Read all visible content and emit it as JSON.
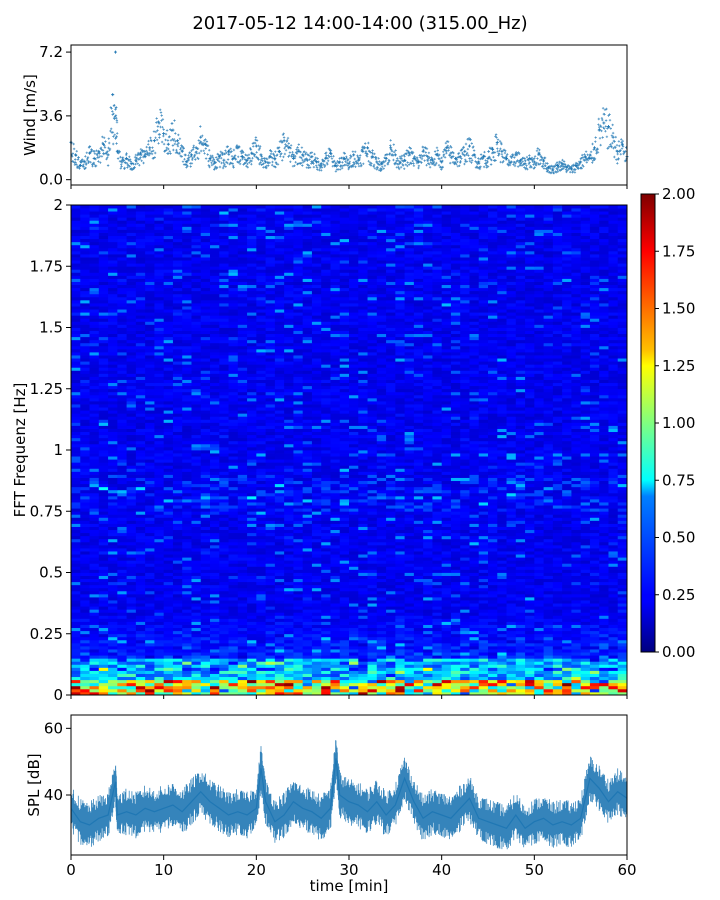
{
  "figure": {
    "title": "2017-05-12 14:00-14:00 (315.00_Hz)"
  },
  "chart_data": [
    {
      "type": "scatter",
      "panel": "wind",
      "ylabel": "Wind [m/s]",
      "xlabel": "",
      "xlim": [
        0,
        60
      ],
      "ylim": [
        -0.3,
        7.6
      ],
      "yticks": [
        0.0,
        3.6,
        7.2
      ],
      "ytick_labels": [
        "0.0",
        "3.6",
        "7.2"
      ],
      "marker": "+",
      "color": "#1f77b4",
      "grid": false,
      "x": [
        0.0,
        0.5,
        1.0,
        1.5,
        2.0,
        2.5,
        3.0,
        3.5,
        4.0,
        4.5,
        4.8,
        5.0,
        5.5,
        6.0,
        6.5,
        7.0,
        7.5,
        8.0,
        8.5,
        9.0,
        9.5,
        10.0,
        10.5,
        11.0,
        11.5,
        12.0,
        12.5,
        13.0,
        13.5,
        14.0,
        14.5,
        15.0,
        15.5,
        16.0,
        16.5,
        17.0,
        17.5,
        18.0,
        18.5,
        19.0,
        19.5,
        20.0,
        20.5,
        21.0,
        21.5,
        22.0,
        22.5,
        23.0,
        23.5,
        24.0,
        24.5,
        25.0,
        25.5,
        26.0,
        26.5,
        27.0,
        27.5,
        28.0,
        28.5,
        29.0,
        29.5,
        30.0,
        30.5,
        31.0,
        31.5,
        32.0,
        32.5,
        33.0,
        33.5,
        34.0,
        34.5,
        35.0,
        35.5,
        36.0,
        36.5,
        37.0,
        37.5,
        38.0,
        38.5,
        39.0,
        39.5,
        40.0,
        40.5,
        41.0,
        41.5,
        42.0,
        42.5,
        43.0,
        43.5,
        44.0,
        44.5,
        45.0,
        45.5,
        46.0,
        46.5,
        47.0,
        47.5,
        48.0,
        48.5,
        49.0,
        49.5,
        50.0,
        50.5,
        51.0,
        51.5,
        52.0,
        52.5,
        53.0,
        53.5,
        54.0,
        54.5,
        55.0,
        55.5,
        56.0,
        56.5,
        57.0,
        57.5,
        58.0,
        58.5,
        59.0,
        59.5,
        60.0
      ],
      "y": [
        2.1,
        1.4,
        0.8,
        1.0,
        1.5,
        1.2,
        1.6,
        2.0,
        1.4,
        4.8,
        7.2,
        1.6,
        1.0,
        1.2,
        0.9,
        1.1,
        1.5,
        1.3,
        1.8,
        2.2,
        3.2,
        2.6,
        2.0,
        2.8,
        2.2,
        1.6,
        1.0,
        1.4,
        1.8,
        2.4,
        2.0,
        1.2,
        1.0,
        1.3,
        1.1,
        1.6,
        1.2,
        1.8,
        1.3,
        1.1,
        1.5,
        1.9,
        1.4,
        1.0,
        1.3,
        1.2,
        1.6,
        2.2,
        1.8,
        1.2,
        1.6,
        1.4,
        1.1,
        1.3,
        1.0,
        0.9,
        1.2,
        1.5,
        0.8,
        1.0,
        1.2,
        0.9,
        1.4,
        1.1,
        1.6,
        1.8,
        1.3,
        1.0,
        0.9,
        1.2,
        1.8,
        1.4,
        1.0,
        1.1,
        1.5,
        1.2,
        1.0,
        1.6,
        1.3,
        1.1,
        1.4,
        1.0,
        1.8,
        1.5,
        1.2,
        1.3,
        1.6,
        1.9,
        1.4,
        1.0,
        1.3,
        1.2,
        1.7,
        2.1,
        1.6,
        1.2,
        1.0,
        1.4,
        1.1,
        0.9,
        1.2,
        1.0,
        1.5,
        1.1,
        0.7,
        0.6,
        0.8,
        0.9,
        0.7,
        0.6,
        0.8,
        1.0,
        1.3,
        1.2,
        1.8,
        2.8,
        3.2,
        3.0,
        2.4,
        1.6,
        2.0,
        1.3
      ]
    },
    {
      "type": "heatmap",
      "panel": "spectrogram",
      "ylabel": "FFT Frequenz [Hz]",
      "xlabel": "",
      "xlim": [
        0,
        60
      ],
      "ylim": [
        0,
        2
      ],
      "yticks": [
        0,
        0.25,
        0.5,
        0.75,
        1,
        1.25,
        1.5,
        1.75,
        2
      ],
      "ytick_labels": [
        "0",
        "0.25",
        "0.5",
        "0.75",
        "1",
        "1.25",
        "1.5",
        "1.75",
        "2"
      ],
      "colormap": "jet",
      "color_range": [
        0.0,
        2.0
      ],
      "colorbar_ticks": [
        0.0,
        0.25,
        0.5,
        0.75,
        1.0,
        1.25,
        1.5,
        1.75,
        2.0
      ],
      "colorbar_tick_labels": [
        "0.00",
        "0.25",
        "0.50",
        "0.75",
        "1.00",
        "1.25",
        "1.50",
        "1.75",
        "2.00"
      ],
      "grid": false
    },
    {
      "type": "line",
      "panel": "spl",
      "ylabel": "SPL [dB]",
      "xlabel": "time [min]",
      "xlim": [
        0,
        60
      ],
      "ylim": [
        22,
        64
      ],
      "yticks": [
        40,
        60
      ],
      "ytick_labels": [
        "40",
        "60"
      ],
      "xticks": [
        0,
        10,
        20,
        30,
        40,
        50,
        60
      ],
      "xtick_labels": [
        "0",
        "10",
        "20",
        "30",
        "40",
        "50",
        "60"
      ],
      "color": "#1f77b4",
      "grid": false,
      "x": [
        0,
        1,
        2,
        3,
        4,
        4.8,
        5,
        6,
        7,
        8,
        9,
        10,
        11,
        12,
        13,
        14,
        15,
        16,
        17,
        18,
        19,
        20,
        20.5,
        21,
        22,
        23,
        24,
        25,
        26,
        27,
        28,
        28.6,
        29,
        30,
        31,
        32,
        33,
        34,
        35,
        36,
        37,
        38,
        39,
        40,
        41,
        42,
        43,
        44,
        45,
        46,
        47,
        48,
        49,
        50,
        51,
        52,
        53,
        54,
        55,
        56,
        57,
        58,
        59,
        60
      ],
      "y": [
        36,
        32,
        31,
        33,
        34,
        44,
        34,
        35,
        34,
        36,
        35,
        36,
        37,
        35,
        38,
        41,
        38,
        36,
        34,
        35,
        34,
        36,
        48,
        38,
        32,
        34,
        38,
        36,
        35,
        33,
        36,
        51,
        40,
        38,
        37,
        35,
        38,
        34,
        37,
        45,
        38,
        33,
        35,
        34,
        33,
        36,
        39,
        33,
        32,
        31,
        30,
        34,
        30,
        32,
        33,
        31,
        32,
        31,
        33,
        45,
        42,
        38,
        41,
        39
      ]
    }
  ]
}
